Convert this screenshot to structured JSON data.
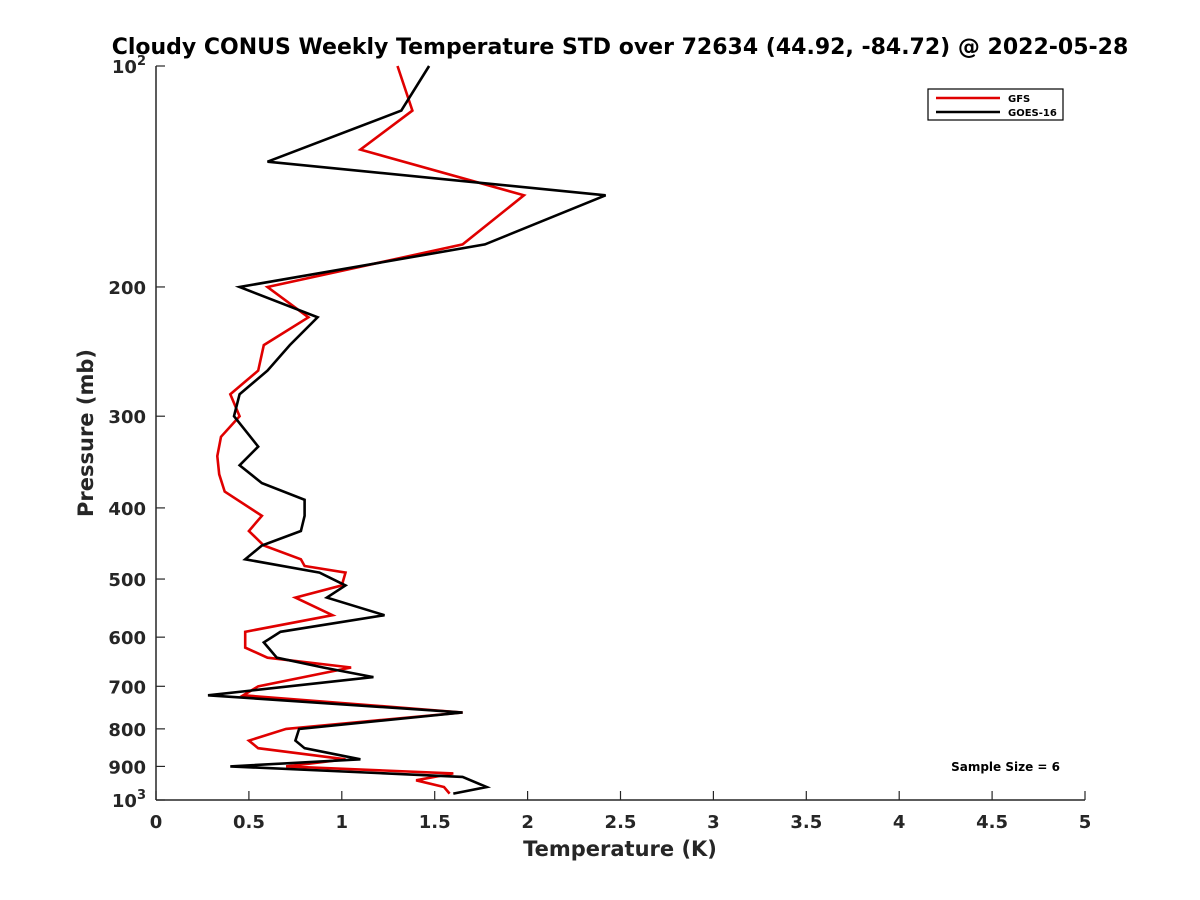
{
  "chart_data": {
    "type": "line",
    "title": "Cloudy CONUS Weekly Temperature STD over 72634 (44.92, -84.72) @ 2022-05-28",
    "xlabel": "Temperature (K)",
    "ylabel": "Pressure (mb)",
    "xlim": [
      0,
      5
    ],
    "ylim": [
      100,
      1000
    ],
    "y_scale": "log",
    "y_reversed": true,
    "grid": false,
    "legend_position": "top-right",
    "x_ticks": [
      {
        "value": 0,
        "label": "0"
      },
      {
        "value": 0.5,
        "label": "0.5"
      },
      {
        "value": 1,
        "label": "1"
      },
      {
        "value": 1.5,
        "label": "1.5"
      },
      {
        "value": 2,
        "label": "2"
      },
      {
        "value": 2.5,
        "label": "2.5"
      },
      {
        "value": 3,
        "label": "3"
      },
      {
        "value": 3.5,
        "label": "3.5"
      },
      {
        "value": 4,
        "label": "4"
      },
      {
        "value": 4.5,
        "label": "4.5"
      },
      {
        "value": 5,
        "label": "5"
      }
    ],
    "y_ticks": [
      {
        "value": 100,
        "label": "10",
        "exp": "2"
      },
      {
        "value": 200,
        "label": "200",
        "exp": ""
      },
      {
        "value": 300,
        "label": "300",
        "exp": ""
      },
      {
        "value": 400,
        "label": "400",
        "exp": ""
      },
      {
        "value": 500,
        "label": "500",
        "exp": ""
      },
      {
        "value": 600,
        "label": "600",
        "exp": ""
      },
      {
        "value": 700,
        "label": "700",
        "exp": ""
      },
      {
        "value": 800,
        "label": "800",
        "exp": ""
      },
      {
        "value": 900,
        "label": "900",
        "exp": ""
      },
      {
        "value": 1000,
        "label": "10",
        "exp": "3"
      }
    ],
    "annotation": "Sample Size = 6",
    "series": [
      {
        "name": "GFS",
        "color": "#e00000",
        "points": [
          [
            1.3,
            100
          ],
          [
            1.38,
            115
          ],
          [
            1.1,
            130
          ],
          [
            1.98,
            150
          ],
          [
            1.65,
            175
          ],
          [
            0.6,
            200
          ],
          [
            0.82,
            220
          ],
          [
            0.58,
            240
          ],
          [
            0.55,
            260
          ],
          [
            0.4,
            280
          ],
          [
            0.45,
            300
          ],
          [
            0.35,
            320
          ],
          [
            0.33,
            340
          ],
          [
            0.34,
            360
          ],
          [
            0.37,
            380
          ],
          [
            0.57,
            410
          ],
          [
            0.5,
            430
          ],
          [
            0.58,
            450
          ],
          [
            0.78,
            470
          ],
          [
            0.8,
            480
          ],
          [
            1.02,
            490
          ],
          [
            1.0,
            510
          ],
          [
            0.75,
            530
          ],
          [
            0.95,
            560
          ],
          [
            0.48,
            590
          ],
          [
            0.48,
            620
          ],
          [
            0.6,
            640
          ],
          [
            1.05,
            660
          ],
          [
            0.55,
            700
          ],
          [
            0.47,
            720
          ],
          [
            1.65,
            760
          ],
          [
            0.7,
            800
          ],
          [
            0.5,
            830
          ],
          [
            0.55,
            850
          ],
          [
            1.02,
            880
          ],
          [
            0.7,
            900
          ],
          [
            1.6,
            920
          ],
          [
            1.4,
            940
          ],
          [
            1.55,
            960
          ],
          [
            1.58,
            980
          ]
        ]
      },
      {
        "name": "GOES-16",
        "color": "#000000",
        "points": [
          [
            1.47,
            100
          ],
          [
            1.32,
            115
          ],
          [
            0.6,
            135
          ],
          [
            2.42,
            150
          ],
          [
            1.77,
            175
          ],
          [
            0.45,
            200
          ],
          [
            0.87,
            220
          ],
          [
            0.72,
            240
          ],
          [
            0.6,
            260
          ],
          [
            0.45,
            280
          ],
          [
            0.42,
            300
          ],
          [
            0.55,
            330
          ],
          [
            0.45,
            350
          ],
          [
            0.57,
            370
          ],
          [
            0.8,
            390
          ],
          [
            0.8,
            410
          ],
          [
            0.78,
            430
          ],
          [
            0.57,
            450
          ],
          [
            0.48,
            470
          ],
          [
            0.88,
            490
          ],
          [
            1.02,
            510
          ],
          [
            0.92,
            530
          ],
          [
            1.23,
            560
          ],
          [
            0.67,
            590
          ],
          [
            0.58,
            610
          ],
          [
            0.65,
            640
          ],
          [
            0.9,
            660
          ],
          [
            1.17,
            680
          ],
          [
            0.28,
            720
          ],
          [
            1.65,
            760
          ],
          [
            0.77,
            800
          ],
          [
            0.75,
            830
          ],
          [
            0.8,
            850
          ],
          [
            1.1,
            880
          ],
          [
            0.4,
            900
          ],
          [
            1.65,
            930
          ],
          [
            1.78,
            960
          ],
          [
            1.6,
            980
          ]
        ]
      }
    ]
  }
}
